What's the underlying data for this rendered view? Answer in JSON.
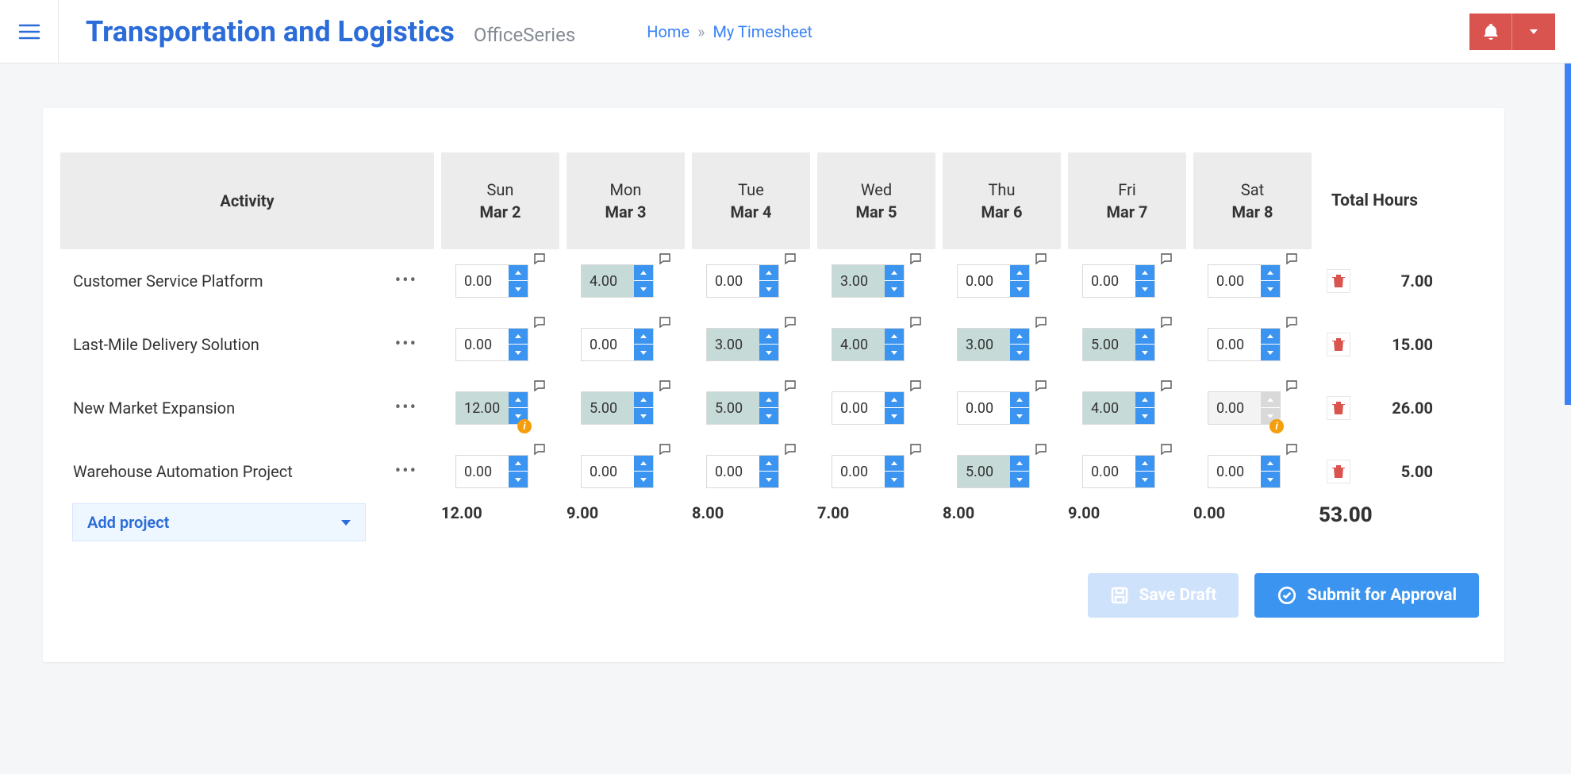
{
  "header": {
    "app_title": "Transportation and Logistics",
    "sub_title": "OfficeSeries",
    "breadcrumb_home": "Home",
    "breadcrumb_sep": "»",
    "breadcrumb_current": "My Timesheet"
  },
  "colors": {
    "primary_blue": "#2b6cd9",
    "link_blue": "#3b82f6",
    "spinner_blue": "#3b94f0",
    "danger_red": "#d9534f",
    "header_bg": "#ececec",
    "filled_bg": "#c6dbd7",
    "warn": "#f59e0b",
    "add_proj_bg": "#eef6ff"
  },
  "columns": {
    "activity_header": "Activity",
    "total_header": "Total Hours",
    "days": [
      {
        "dow": "Sun",
        "date": "Mar 2"
      },
      {
        "dow": "Mon",
        "date": "Mar 3"
      },
      {
        "dow": "Tue",
        "date": "Mar 4"
      },
      {
        "dow": "Wed",
        "date": "Mar 5"
      },
      {
        "dow": "Thu",
        "date": "Mar 6"
      },
      {
        "dow": "Fri",
        "date": "Mar 7"
      },
      {
        "dow": "Sat",
        "date": "Mar 8"
      }
    ]
  },
  "rows": [
    {
      "activity": "Customer Service Platform",
      "cells": [
        {
          "value": "0.00",
          "filled": false
        },
        {
          "value": "4.00",
          "filled": true
        },
        {
          "value": "0.00",
          "filled": false
        },
        {
          "value": "3.00",
          "filled": true
        },
        {
          "value": "0.00",
          "filled": false
        },
        {
          "value": "0.00",
          "filled": false
        },
        {
          "value": "0.00",
          "filled": false
        }
      ],
      "total": "7.00"
    },
    {
      "activity": "Last-Mile Delivery Solution",
      "cells": [
        {
          "value": "0.00",
          "filled": false
        },
        {
          "value": "0.00",
          "filled": false
        },
        {
          "value": "3.00",
          "filled": true
        },
        {
          "value": "4.00",
          "filled": true
        },
        {
          "value": "3.00",
          "filled": true
        },
        {
          "value": "5.00",
          "filled": true
        },
        {
          "value": "0.00",
          "filled": false
        }
      ],
      "total": "15.00"
    },
    {
      "activity": "New Market Expansion",
      "cells": [
        {
          "value": "12.00",
          "filled": true,
          "warn": true
        },
        {
          "value": "5.00",
          "filled": true
        },
        {
          "value": "5.00",
          "filled": true
        },
        {
          "value": "0.00",
          "filled": false
        },
        {
          "value": "0.00",
          "filled": false
        },
        {
          "value": "4.00",
          "filled": true
        },
        {
          "value": "0.00",
          "filled": false,
          "disabled": true,
          "warn": true
        }
      ],
      "total": "26.00"
    },
    {
      "activity": "Warehouse Automation Project",
      "cells": [
        {
          "value": "0.00",
          "filled": false
        },
        {
          "value": "0.00",
          "filled": false
        },
        {
          "value": "0.00",
          "filled": false
        },
        {
          "value": "0.00",
          "filled": false
        },
        {
          "value": "5.00",
          "filled": true
        },
        {
          "value": "0.00",
          "filled": false
        },
        {
          "value": "0.00",
          "filled": false
        }
      ],
      "total": "5.00"
    }
  ],
  "column_totals": [
    "12.00",
    "9.00",
    "8.00",
    "7.00",
    "8.00",
    "9.00",
    "0.00"
  ],
  "grand_total": "53.00",
  "add_project_label": "Add project",
  "actions": {
    "save_draft": "Save Draft",
    "submit": "Submit for Approval"
  }
}
